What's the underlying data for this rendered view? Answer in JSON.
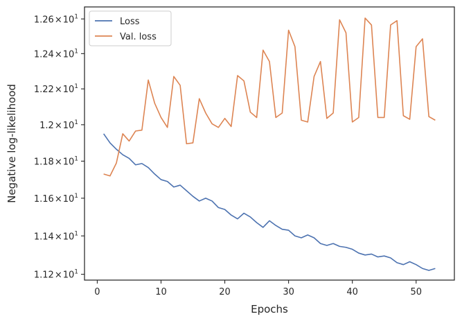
{
  "chart_data": {
    "type": "line",
    "xlabel": "Epochs",
    "ylabel": "Negative log-likelihood",
    "xlim": [
      -2.0,
      56.0
    ],
    "ylim": [
      11.17,
      12.67
    ],
    "y_scale": "log",
    "grid": false,
    "legend_position": "top-left",
    "x_ticks": [
      0,
      10,
      20,
      30,
      40,
      50
    ],
    "x_tick_labels": [
      "0",
      "10",
      "20",
      "30",
      "40",
      "50"
    ],
    "y_ticks": [
      11.2,
      11.4,
      11.6,
      11.8,
      12.0,
      12.2,
      12.4,
      12.6
    ],
    "y_tick_labels": [
      {
        "mantissa": "1.12",
        "times": "×",
        "base": "10",
        "exp": "1"
      },
      {
        "mantissa": "1.14",
        "times": "×",
        "base": "10",
        "exp": "1"
      },
      {
        "mantissa": "1.16",
        "times": "×",
        "base": "10",
        "exp": "1"
      },
      {
        "mantissa": "1.18",
        "times": "×",
        "base": "10",
        "exp": "1"
      },
      {
        "mantissa": "1.2",
        "times": "×",
        "base": "10",
        "exp": "1"
      },
      {
        "mantissa": "1.22",
        "times": "×",
        "base": "10",
        "exp": "1"
      },
      {
        "mantissa": "1.24",
        "times": "×",
        "base": "10",
        "exp": "1"
      },
      {
        "mantissa": "1.26",
        "times": "×",
        "base": "10",
        "exp": "1"
      }
    ],
    "x": [
      1,
      2,
      3,
      4,
      5,
      6,
      7,
      8,
      9,
      10,
      11,
      12,
      13,
      14,
      15,
      16,
      17,
      18,
      19,
      20,
      21,
      22,
      23,
      24,
      25,
      26,
      27,
      28,
      29,
      30,
      31,
      32,
      33,
      34,
      35,
      36,
      37,
      38,
      39,
      40,
      41,
      42,
      43,
      44,
      45,
      46,
      47,
      48,
      49,
      50,
      51,
      52,
      53
    ],
    "series": [
      {
        "name": "Loss",
        "color": "#4c72b0",
        "values": [
          11.95,
          11.9,
          11.865,
          11.835,
          11.815,
          11.78,
          11.787,
          11.765,
          11.73,
          11.7,
          11.69,
          11.66,
          11.67,
          11.64,
          11.61,
          11.585,
          11.6,
          11.585,
          11.55,
          11.54,
          11.51,
          11.49,
          11.52,
          11.5,
          11.47,
          11.445,
          11.48,
          11.455,
          11.435,
          11.43,
          11.4,
          11.39,
          11.405,
          11.39,
          11.36,
          11.35,
          11.36,
          11.345,
          11.34,
          11.33,
          11.31,
          11.3,
          11.305,
          11.29,
          11.295,
          11.285,
          11.26,
          11.25,
          11.265,
          11.25,
          11.23,
          11.22,
          11.23
        ]
      },
      {
        "name": "Val. loss",
        "color": "#dd8452",
        "values": [
          11.73,
          11.72,
          11.79,
          11.95,
          11.91,
          11.965,
          11.97,
          12.25,
          12.12,
          12.04,
          11.985,
          12.27,
          12.22,
          11.895,
          11.9,
          12.145,
          12.065,
          12.005,
          11.985,
          12.035,
          11.99,
          12.275,
          12.245,
          12.07,
          12.04,
          12.42,
          12.355,
          12.04,
          12.065,
          12.535,
          12.44,
          12.025,
          12.015,
          12.27,
          12.355,
          12.035,
          12.065,
          12.595,
          12.52,
          12.015,
          12.04,
          12.605,
          12.565,
          12.04,
          12.04,
          12.565,
          12.59,
          12.05,
          12.03,
          12.44,
          12.485,
          12.045,
          12.025
        ]
      }
    ]
  }
}
